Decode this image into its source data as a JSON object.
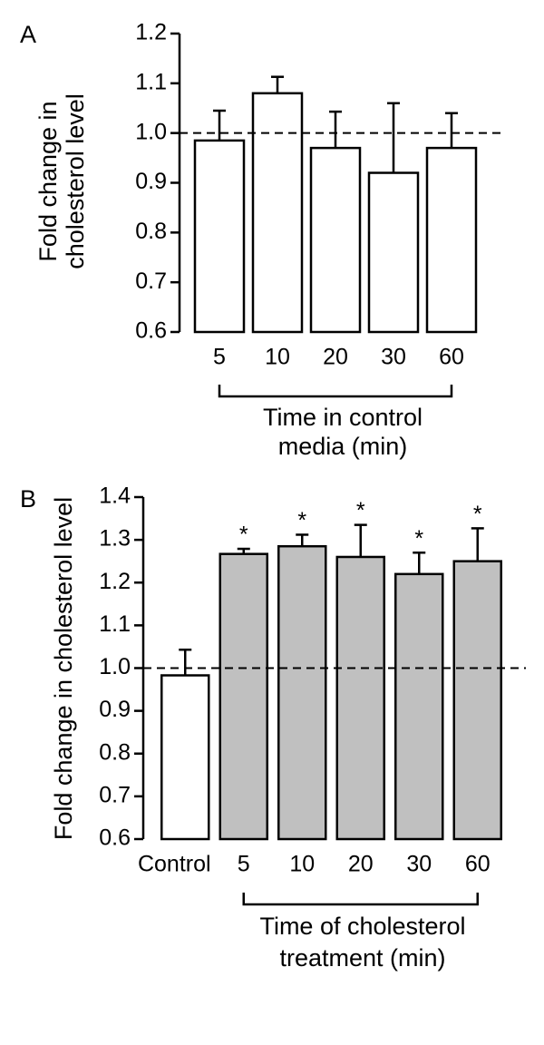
{
  "chart_data": [
    {
      "type": "bar",
      "panel": "A",
      "categories": [
        "5",
        "10",
        "20",
        "30",
        "60"
      ],
      "values": [
        0.985,
        1.08,
        0.97,
        0.92,
        0.97
      ],
      "errors": [
        0.06,
        0.033,
        0.073,
        0.14,
        0.07
      ],
      "colors": [
        "#ffffff",
        "#ffffff",
        "#ffffff",
        "#ffffff",
        "#ffffff"
      ],
      "ylabel": [
        "Fold change in",
        "cholesterol level"
      ],
      "xlabel": [
        "Time in control",
        "media (min)"
      ],
      "ylim": [
        0.6,
        1.2
      ],
      "yticks": [
        0.6,
        0.7,
        0.8,
        0.9,
        {
          "value": 1,
          "label": "1.0"
        },
        1.1,
        1.2
      ],
      "refline": 1
    },
    {
      "type": "bar",
      "panel": "B",
      "categories": [
        "Control",
        "5",
        "10",
        "20",
        "30",
        "60"
      ],
      "values": [
        0.983,
        1.267,
        1.285,
        1.26,
        1.22,
        1.25
      ],
      "errors": [
        0.06,
        0.012,
        0.027,
        0.075,
        0.05,
        0.077
      ],
      "colors": [
        "#ffffff",
        "#c0c0c0",
        "#c0c0c0",
        "#c0c0c0",
        "#c0c0c0",
        "#c0c0c0"
      ],
      "annotations": [
        null,
        "*",
        "*",
        "*",
        "*",
        "*"
      ],
      "ylabel": [
        "Fold change in cholesterol level"
      ],
      "xlabel": [
        "Time of cholesterol",
        "treatment (min)"
      ],
      "ylim": [
        0.6,
        1.4
      ],
      "yticks": [
        0.6,
        0.7,
        0.8,
        0.9,
        {
          "value": 1,
          "label": "1.0"
        },
        1.1,
        1.2,
        1.3,
        1.4
      ],
      "refline": 1
    }
  ]
}
